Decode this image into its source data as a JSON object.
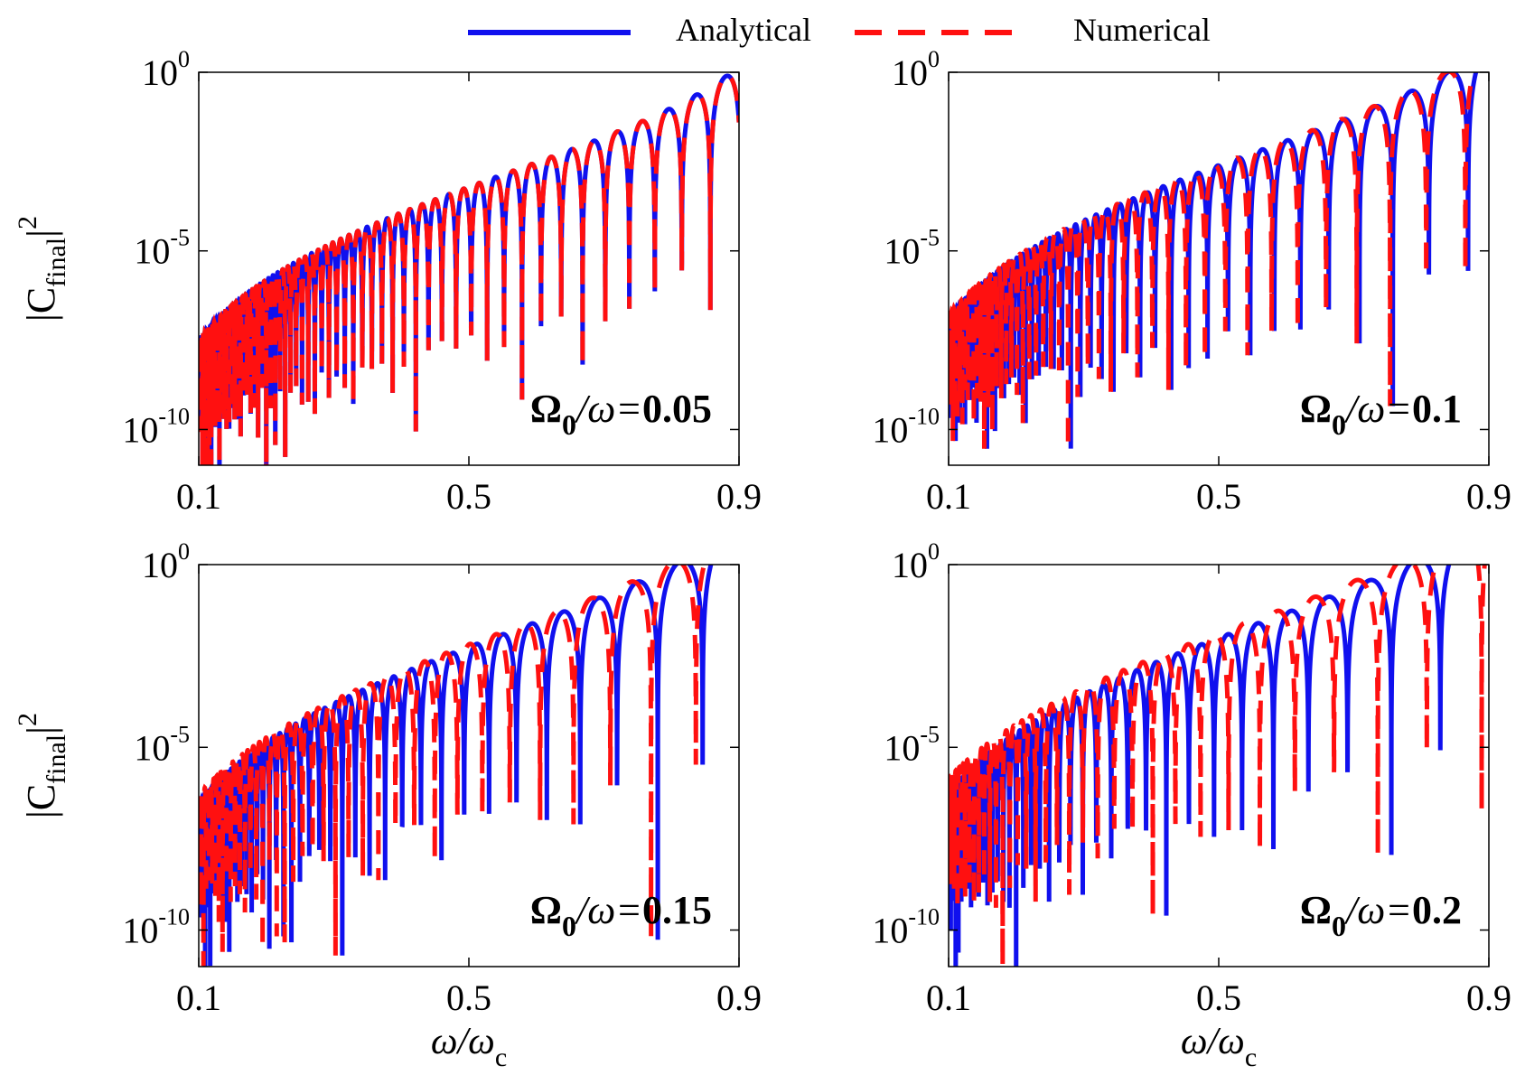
{
  "legend": {
    "placement": "top-center",
    "entries": [
      {
        "label": "Analytical",
        "color": "#1010ee",
        "style": "solid"
      },
      {
        "label": "Numerical",
        "color": "#ff1010",
        "style": "dashed"
      }
    ]
  },
  "colors": {
    "analytical": "#1010ee",
    "numerical": "#ff1010"
  },
  "chart_data": [
    {
      "type": "line",
      "scale_y": "log",
      "xlim": [
        0.1,
        0.9
      ],
      "ylim": [
        1e-11,
        1
      ],
      "xticks": [
        "0.1",
        "0.5",
        "0.9"
      ],
      "yticks": [
        {
          "base": "10",
          "exp": "0"
        },
        {
          "base": "10",
          "exp": "-5"
        },
        {
          "base": "10",
          "exp": "-10"
        }
      ],
      "ylabel": {
        "main": "|C",
        "sub": "final",
        "tail": "|",
        "sup": "2"
      },
      "xlabel": null,
      "annotation": {
        "symbol": "Ω",
        "sub": "0",
        "mid": "/ω=",
        "value": "0.05"
      },
      "alpha": 0.05,
      "shift": 0.0,
      "grid": false
    },
    {
      "type": "line",
      "scale_y": "log",
      "xlim": [
        0.1,
        0.9
      ],
      "ylim": [
        1e-11,
        1
      ],
      "xticks": [
        "0.1",
        "0.5",
        "0.9"
      ],
      "yticks": [
        {
          "base": "10",
          "exp": "0"
        },
        {
          "base": "10",
          "exp": "-5"
        },
        {
          "base": "10",
          "exp": "-10"
        }
      ],
      "ylabel": null,
      "xlabel": null,
      "annotation": {
        "symbol": "Ω",
        "sub": "0",
        "mid": "/ω=",
        "value": "0.1"
      },
      "alpha": 0.1,
      "shift": 0.004,
      "grid": false
    },
    {
      "type": "line",
      "scale_y": "log",
      "xlim": [
        0.1,
        0.9
      ],
      "ylim": [
        1e-11,
        1
      ],
      "xticks": [
        "0.1",
        "0.5",
        "0.9"
      ],
      "yticks": [
        {
          "base": "10",
          "exp": "0"
        },
        {
          "base": "10",
          "exp": "-5"
        },
        {
          "base": "10",
          "exp": "-10"
        }
      ],
      "ylabel": {
        "main": "|C",
        "sub": "final",
        "tail": "|",
        "sup": "2"
      },
      "xlabel": {
        "main": "ω/ω",
        "sub": "c"
      },
      "annotation": {
        "symbol": "Ω",
        "sub": "0",
        "mid": "/ω=",
        "value": "0.15"
      },
      "alpha": 0.15,
      "shift": 0.01,
      "grid": false
    },
    {
      "type": "line",
      "scale_y": "log",
      "xlim": [
        0.1,
        0.9
      ],
      "ylim": [
        1e-11,
        1
      ],
      "xticks": [
        "0.1",
        "0.5",
        "0.9"
      ],
      "yticks": [
        {
          "base": "10",
          "exp": "0"
        },
        {
          "base": "10",
          "exp": "-5"
        },
        {
          "base": "10",
          "exp": "-10"
        }
      ],
      "ylabel": null,
      "xlabel": {
        "main": "ω/ω",
        "sub": "c"
      },
      "annotation": {
        "symbol": "Ω",
        "sub": "0",
        "mid": "/ω=",
        "value": "0.2"
      },
      "alpha": 0.2,
      "shift": 0.02,
      "grid": false
    }
  ]
}
